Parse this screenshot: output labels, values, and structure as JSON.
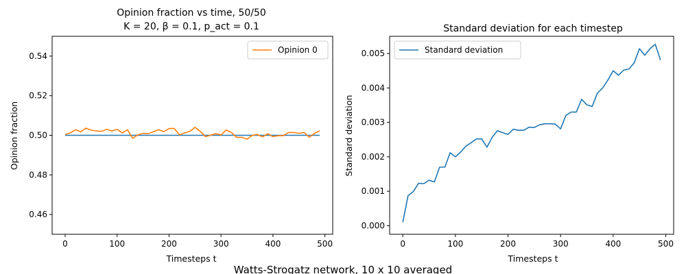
{
  "suptitle": "Watts-Strogatz network, 10 x 10 averaged",
  "chart_data": [
    {
      "type": "line",
      "title_line1": "Opinion fraction vs time, 50/50",
      "title_line2": "K = 20, β = 0.1, p_act = 0.1",
      "xlabel": "Timesteps t",
      "ylabel": "Opinion fraction",
      "xlim": [
        -25,
        515
      ],
      "ylim": [
        0.45,
        0.55
      ],
      "xticks": [
        0,
        100,
        200,
        300,
        400,
        500
      ],
      "yticks": [
        0.46,
        0.48,
        0.5,
        0.52,
        0.54
      ],
      "ytick_labels": [
        "0.46",
        "0.48",
        "0.50",
        "0.52",
        "0.54"
      ],
      "legend_position": "upper right",
      "series": [
        {
          "name": "",
          "in_legend": false,
          "color": "#1f77b4",
          "x": [
            0,
            490
          ],
          "y": [
            0.5,
            0.5
          ]
        },
        {
          "name": "Opinion 0",
          "in_legend": true,
          "color": "#ff7f0e",
          "x": [
            0,
            10,
            20,
            30,
            40,
            50,
            60,
            70,
            80,
            90,
            100,
            110,
            120,
            130,
            140,
            150,
            160,
            170,
            180,
            190,
            200,
            210,
            220,
            230,
            240,
            250,
            260,
            270,
            280,
            290,
            300,
            310,
            320,
            330,
            340,
            350,
            360,
            370,
            380,
            390,
            400,
            410,
            420,
            430,
            440,
            450,
            460,
            470,
            480,
            490
          ],
          "y": [
            0.5004,
            0.5012,
            0.5028,
            0.5018,
            0.5036,
            0.5026,
            0.5022,
            0.502,
            0.503,
            0.5022,
            0.503,
            0.5012,
            0.5028,
            0.4985,
            0.5002,
            0.501,
            0.5008,
            0.5018,
            0.5028,
            0.5018,
            0.5034,
            0.5035,
            0.5002,
            0.5012,
            0.502,
            0.504,
            0.502,
            0.4993,
            0.5,
            0.5008,
            0.5002,
            0.5027,
            0.5014,
            0.499,
            0.499,
            0.498,
            0.5,
            0.5004,
            0.4992,
            0.5008,
            0.4993,
            0.4998,
            0.4998,
            0.5014,
            0.5014,
            0.501,
            0.5014,
            0.499,
            0.501,
            0.5022
          ]
        }
      ]
    },
    {
      "type": "line",
      "title": "Standard deviation for each timestep",
      "xlabel": "Timesteps t",
      "ylabel": "Standard deviation",
      "xlim": [
        -25,
        515
      ],
      "ylim": [
        -0.00025,
        0.0055
      ],
      "xticks": [
        0,
        100,
        200,
        300,
        400,
        500
      ],
      "yticks": [
        0.0,
        0.001,
        0.002,
        0.003,
        0.004,
        0.005
      ],
      "ytick_labels": [
        "0.000",
        "0.001",
        "0.002",
        "0.003",
        "0.004",
        "0.005"
      ],
      "legend_position": "upper left",
      "series": [
        {
          "name": "Standard deviation",
          "in_legend": true,
          "color": "#1f77b4",
          "x": [
            0,
            10,
            20,
            30,
            40,
            50,
            60,
            70,
            80,
            90,
            100,
            110,
            120,
            130,
            140,
            150,
            160,
            170,
            180,
            190,
            200,
            210,
            220,
            230,
            240,
            250,
            260,
            270,
            280,
            290,
            300,
            310,
            320,
            330,
            340,
            350,
            360,
            370,
            380,
            390,
            400,
            410,
            420,
            430,
            440,
            450,
            460,
            470,
            480,
            490
          ],
          "y": [
            0.0001,
            0.00087,
            0.00099,
            0.00123,
            0.00122,
            0.00132,
            0.00127,
            0.0017,
            0.0017,
            0.00212,
            0.002,
            0.00214,
            0.00231,
            0.00241,
            0.00252,
            0.00252,
            0.00228,
            0.00257,
            0.00276,
            0.0027,
            0.00265,
            0.0028,
            0.00277,
            0.00277,
            0.00286,
            0.00285,
            0.00293,
            0.00296,
            0.00296,
            0.00295,
            0.00281,
            0.0032,
            0.0033,
            0.0033,
            0.00367,
            0.00351,
            0.00346,
            0.00385,
            0.004,
            0.00423,
            0.0045,
            0.00437,
            0.00452,
            0.00455,
            0.00473,
            0.00514,
            0.00495,
            0.00514,
            0.00527,
            0.00481
          ]
        }
      ]
    }
  ]
}
